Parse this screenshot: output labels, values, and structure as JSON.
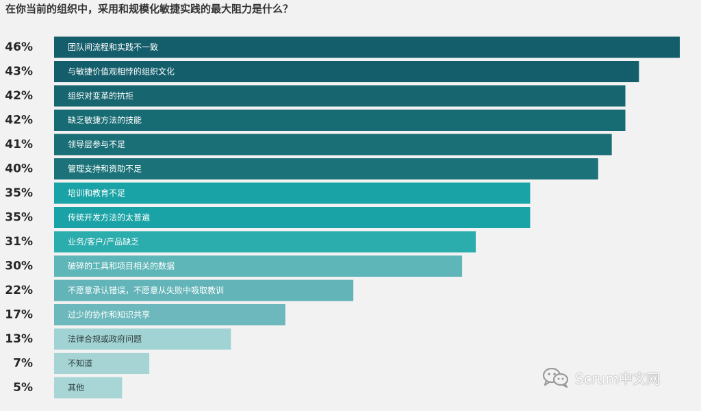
{
  "chart_data": {
    "type": "bar",
    "orientation": "horizontal",
    "title": "在你当前的组织中，采用和规模化敏捷实践的最大阻力是什么？",
    "xlim": [
      0,
      46
    ],
    "grid": false,
    "value_suffix": "%",
    "categories": [
      "团队间流程和实践不一致",
      "与敏捷价值观相悖的组织文化",
      "组织对变革的抗拒",
      "缺乏敏捷方法的技能",
      "领导层参与不足",
      "管理支持和资助不足",
      "培训和教育不足",
      "传统开发方法的太普遍",
      "业务/客户/产品缺乏",
      "破碎的工具和项目相关的数据",
      "不愿意承认错误，不愿意从失败中吸取教训",
      "过少的协作和知识共享",
      "法律合规或政府问题",
      "不知道",
      "其他"
    ],
    "values": [
      46,
      43,
      42,
      42,
      41,
      40,
      35,
      35,
      31,
      30,
      22,
      17,
      13,
      7,
      5
    ],
    "bar_colors": [
      "#145e6b",
      "#145e6b",
      "#16656f",
      "#176b73",
      "#1a6f76",
      "#1b7379",
      "#1aa3a6",
      "#1aa3a6",
      "#2bacad",
      "#5fb6b8",
      "#62b4b8",
      "#6cb8bc",
      "#a2d3d4",
      "#a6d4d5",
      "#a8d6d7"
    ]
  },
  "watermark": {
    "text": "Scrum中文网",
    "icon": "wechat-icon"
  }
}
